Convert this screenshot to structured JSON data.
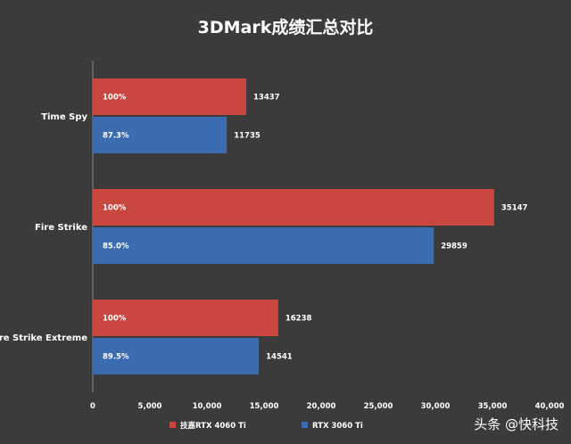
{
  "colors": {
    "background": "#3b3b3b",
    "series_red": "#c9473f",
    "series_blue": "#3b6cb0",
    "text": "#ffffff",
    "axis": "#8a8a8a"
  },
  "watermark": "头条 @快科技",
  "chart_data": {
    "type": "bar",
    "orientation": "horizontal",
    "title": "3DMark成绩汇总对比",
    "categories": [
      "Time Spy",
      "Fire Strike",
      "Fire Strike Extreme"
    ],
    "series": [
      {
        "name": "技嘉RTX 4060 Ti",
        "color": "#c9473f",
        "values": [
          13437,
          35147,
          16238
        ],
        "percent_labels": [
          "100%",
          "100%",
          "100%"
        ]
      },
      {
        "name": "RTX 3060 Ti",
        "color": "#3b6cb0",
        "values": [
          11735,
          29859,
          14541
        ],
        "percent_labels": [
          "87.3%",
          "85.0%",
          "89.5%"
        ]
      }
    ],
    "xlim": [
      0,
      40000
    ],
    "xticks": [
      0,
      5000,
      10000,
      15000,
      20000,
      25000,
      30000,
      35000,
      40000
    ],
    "xtick_labels": [
      "0",
      "5,000",
      "10,000",
      "15,000",
      "20,000",
      "25,000",
      "30,000",
      "35,000",
      "40,000"
    ],
    "grid": false,
    "legend_position": "bottom-center"
  }
}
